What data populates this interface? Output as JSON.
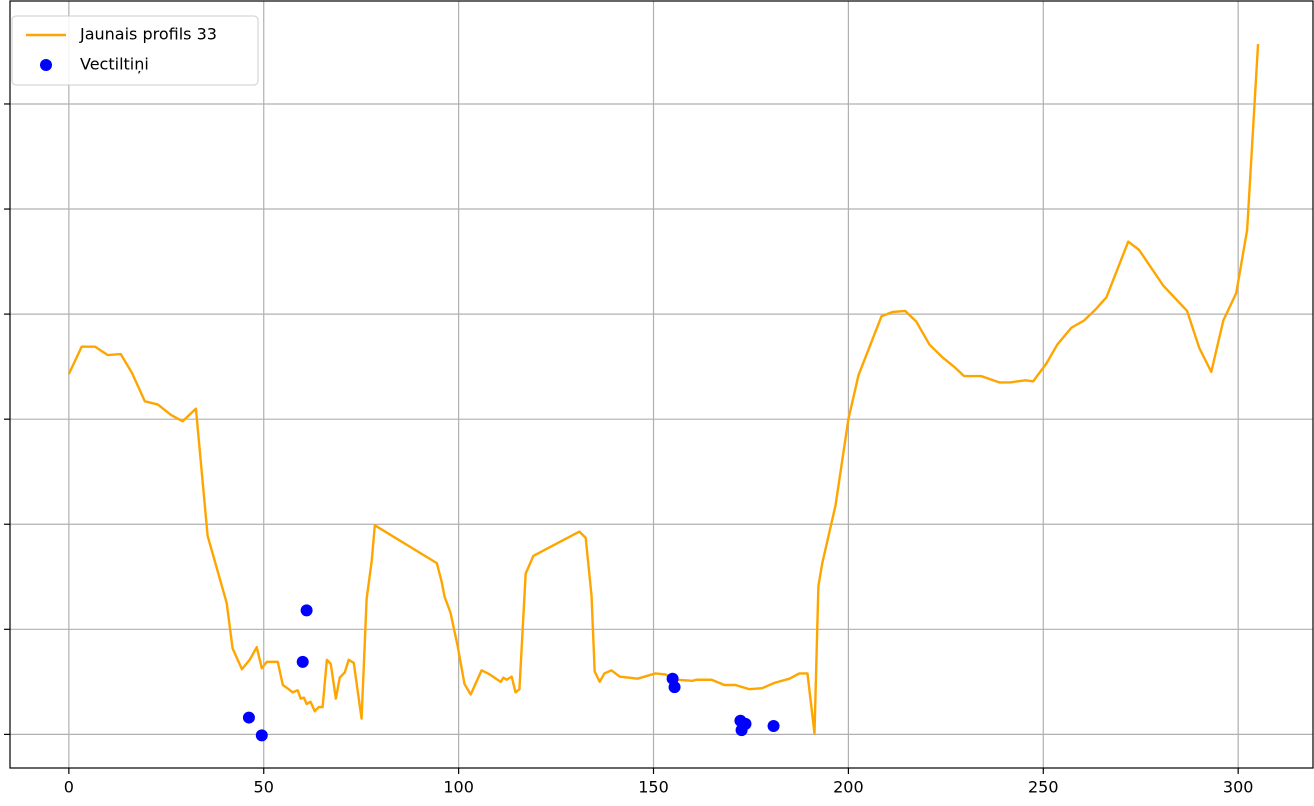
{
  "chart_data": {
    "type": "line",
    "grid": true,
    "legend": "upper left",
    "xlim": [
      -15.1,
      319.2
    ],
    "xticks": [
      0,
      50,
      100,
      150,
      200,
      250,
      300
    ],
    "ylim": [
      -0.32,
      6.98
    ],
    "yticks": [
      0,
      1,
      2,
      3,
      4,
      5,
      6
    ],
    "series": [
      {
        "name": "Jaunais profils 33",
        "type": "line",
        "color": "#ffa500",
        "x": [
          0,
          3.3,
          6.7,
          10,
          13.3,
          16.2,
          19.5,
          22.8,
          26.2,
          29.2,
          32.6,
          35.6,
          40.5,
          42,
          44.4,
          46.4,
          48.2,
          49.5,
          50.8,
          53.6,
          54.9,
          56.4,
          57.4,
          58.7,
          59.5,
          60.3,
          61,
          62,
          63.1,
          64.1,
          65.1,
          66.2,
          67.2,
          68.5,
          69.5,
          70.8,
          71.8,
          73.1,
          75.1,
          76.4,
          77.7,
          78.5,
          94.4,
          95.6,
          96.4,
          97.9,
          99.7,
          101.5,
          103.1,
          105.9,
          108,
          110.8,
          111.5,
          112.3,
          113.6,
          114.6,
          115.6,
          117.2,
          119.2,
          131,
          132.6,
          134.1,
          134.9,
          136.2,
          137.4,
          139.2,
          141.3,
          145.9,
          150.5,
          153.1,
          155.9,
          160,
          161,
          164.9,
          168.2,
          171,
          174.6,
          177.9,
          181,
          184.9,
          187.4,
          189.5,
          191.3,
          192.3,
          193.3,
          196.7,
          200,
          202.6,
          208.5,
          211.3,
          214.6,
          217.4,
          220.8,
          224.1,
          227.4,
          229.7,
          234.1,
          238.7,
          241.5,
          245.4,
          247.4,
          250.8,
          253.6,
          257.2,
          260.5,
          263.3,
          266.2,
          271.8,
          274.6,
          280.8,
          286.9,
          290,
          293.1,
          296.2,
          299.5,
          302.3,
          305.1
        ],
        "values": [
          3.43,
          3.69,
          3.69,
          3.61,
          3.62,
          3.44,
          3.17,
          3.14,
          3.04,
          2.98,
          3.1,
          1.89,
          1.25,
          0.82,
          0.62,
          0.71,
          0.83,
          0.63,
          0.69,
          0.69,
          0.47,
          0.43,
          0.4,
          0.42,
          0.34,
          0.35,
          0.29,
          0.31,
          0.22,
          0.26,
          0.26,
          0.71,
          0.67,
          0.34,
          0.54,
          0.59,
          0.71,
          0.68,
          0.15,
          1.29,
          1.65,
          1.99,
          1.63,
          1.46,
          1.31,
          1.16,
          0.85,
          0.48,
          0.38,
          0.61,
          0.57,
          0.5,
          0.54,
          0.52,
          0.55,
          0.4,
          0.43,
          1.53,
          1.7,
          1.93,
          1.87,
          1.32,
          0.6,
          0.5,
          0.58,
          0.61,
          0.55,
          0.53,
          0.58,
          0.57,
          0.52,
          0.51,
          0.52,
          0.52,
          0.47,
          0.47,
          0.43,
          0.44,
          0.49,
          0.53,
          0.58,
          0.58,
          0.01,
          1.41,
          1.63,
          2.18,
          3.0,
          3.42,
          3.98,
          4.02,
          4.03,
          3.93,
          3.71,
          3.59,
          3.49,
          3.41,
          3.41,
          3.35,
          3.35,
          3.37,
          3.36,
          3.53,
          3.71,
          3.87,
          3.94,
          4.04,
          4.16,
          4.69,
          4.61,
          4.27,
          4.03,
          3.68,
          3.45,
          3.94,
          4.2,
          4.8,
          6.57
        ]
      },
      {
        "name": "Vectiltiņi",
        "type": "scatter",
        "color": "#0000ff",
        "x": [
          46.2,
          49.5,
          60,
          61,
          154.9,
          155.4,
          172.3,
          173.6,
          172.6,
          180.8
        ],
        "values": [
          0.16,
          -0.01,
          0.69,
          1.18,
          0.53,
          0.45,
          0.13,
          0.1,
          0.04,
          0.08
        ]
      }
    ]
  }
}
